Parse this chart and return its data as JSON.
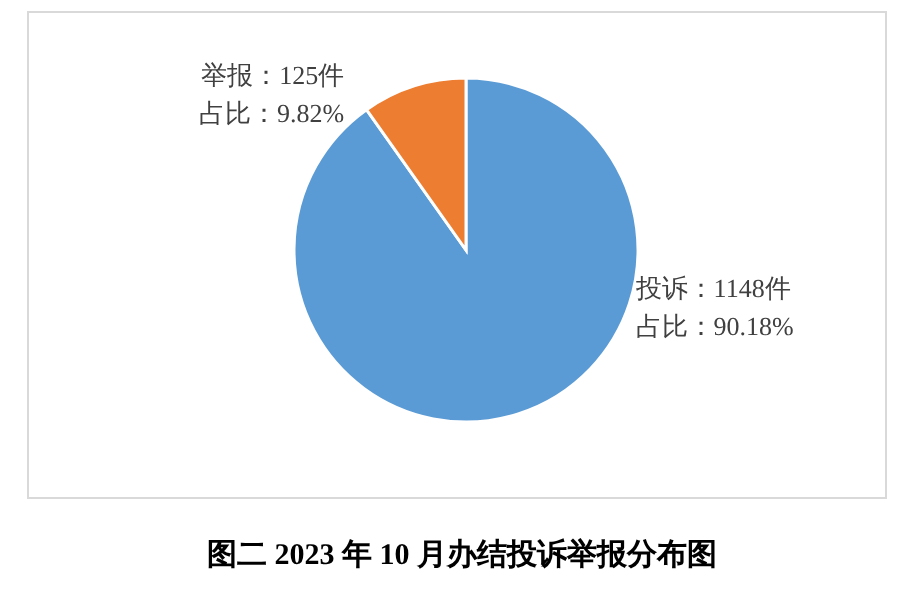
{
  "chart_data": {
    "type": "pie",
    "title": "图二 2023 年 10 月办结投诉举报分布图",
    "categories": [
      "投诉",
      "举报"
    ],
    "values": [
      1148,
      125
    ],
    "colors": [
      "#5b9bd5",
      "#ed7d31"
    ],
    "value_labels": [
      "：1148件",
      "：125件"
    ],
    "annotations": [
      "占比：90.18%",
      "占比：9.82%"
    ],
    "legend": false
  }
}
